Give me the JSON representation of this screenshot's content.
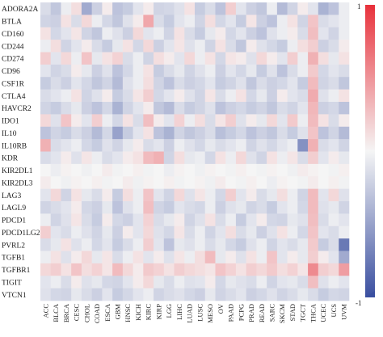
{
  "chart_data": {
    "type": "heatmap",
    "title": "",
    "xlabel": "",
    "ylabel": "",
    "x_categories": [
      "ACC",
      "BLCA",
      "BRCA",
      "CESC",
      "CHOL",
      "COAD",
      "ESCA",
      "GBM",
      "HNSC",
      "KICH",
      "KIRC",
      "KIRP",
      "LGG",
      "LIHC",
      "LUAD",
      "LUSC",
      "MESO",
      "OV",
      "PAAD",
      "PCPG",
      "PRAD",
      "READ",
      "SARC",
      "SKCM",
      "STAD",
      "TGCT",
      "THCA",
      "UCEC",
      "UCS",
      "UVM"
    ],
    "y_categories": [
      "ADORA2A",
      "BTLA",
      "CD160",
      "CD244",
      "CD274",
      "CD96",
      "CSF1R",
      "CTLA4",
      "HAVCR2",
      "IDO1",
      "IL10",
      "IL10RB",
      "KDR",
      "KIR2DL1",
      "KIR2DL3",
      "LAG3",
      "LAGL9",
      "PDCD1",
      "PDCD1LG2",
      "PVRL2",
      "TGFB1",
      "TGFBR1",
      "TIGIT",
      "VTCN1"
    ],
    "color_scale": {
      "min": -1,
      "max": 1,
      "low_color": "#3a4fa0",
      "mid_color": "#f5f5f5",
      "high_color": "#e8323c",
      "ticks": [
        "1",
        "-1"
      ]
    },
    "grid": false,
    "values": [
      [
        -0.15,
        -0.28,
        -0.05,
        0.12,
        -0.45,
        -0.22,
        0.05,
        -0.3,
        -0.25,
        -0.1,
        0.05,
        -0.2,
        -0.18,
        -0.12,
        0.1,
        -0.25,
        -0.15,
        -0.3,
        0.2,
        -0.1,
        -0.22,
        -0.28,
        -0.05,
        -0.35,
        -0.2,
        0.05,
        -0.1,
        -0.4,
        -0.3,
        -0.05
      ],
      [
        -0.2,
        -0.22,
        0.1,
        -0.15,
        0.15,
        -0.05,
        -0.18,
        -0.28,
        -0.12,
        0.05,
        0.4,
        -0.15,
        -0.25,
        -0.1,
        -0.05,
        -0.2,
        0.12,
        -0.18,
        -0.1,
        -0.25,
        0.08,
        -0.22,
        -0.3,
        -0.05,
        0.1,
        -0.2,
        0.25,
        -0.15,
        -0.1,
        -0.05
      ],
      [
        0.1,
        -0.18,
        -0.1,
        0.08,
        -0.2,
        -0.28,
        -0.05,
        -0.12,
        -0.22,
        0.15,
        -0.1,
        -0.05,
        -0.2,
        0.1,
        -0.15,
        -0.25,
        -0.08,
        0.05,
        -0.18,
        -0.1,
        -0.22,
        -0.3,
        -0.12,
        -0.05,
        0.05,
        -0.15,
        0.28,
        -0.1,
        -0.2,
        -0.05
      ],
      [
        -0.05,
        0.12,
        -0.2,
        -0.1,
        0.05,
        -0.15,
        -0.25,
        -0.08,
        0.1,
        -0.18,
        0.15,
        -0.22,
        -0.1,
        0.08,
        -0.12,
        -0.05,
        -0.2,
        0.1,
        -0.15,
        -0.28,
        0.05,
        -0.12,
        -0.18,
        -0.25,
        -0.05,
        0.12,
        0.2,
        -0.22,
        -0.15,
        0.05
      ],
      [
        0.2,
        -0.1,
        0.15,
        -0.05,
        0.25,
        -0.08,
        0.1,
        0.18,
        -0.15,
        -0.05,
        -0.2,
        0.12,
        0.05,
        -0.1,
        0.15,
        -0.05,
        0.1,
        -0.18,
        0.08,
        0.05,
        -0.12,
        0.15,
        0.05,
        -0.1,
        0.2,
        -0.05,
        0.35,
        0.12,
        -0.08,
        0.1
      ],
      [
        -0.1,
        -0.2,
        -0.15,
        0.05,
        -0.08,
        -0.22,
        -0.12,
        -0.3,
        -0.18,
        -0.05,
        0.1,
        -0.25,
        -0.15,
        -0.08,
        -0.2,
        -0.12,
        -0.05,
        -0.22,
        -0.1,
        -0.18,
        -0.08,
        -0.25,
        -0.12,
        -0.3,
        -0.15,
        -0.05,
        0.22,
        -0.18,
        -0.1,
        -0.15
      ],
      [
        -0.25,
        -0.15,
        -0.22,
        -0.1,
        -0.18,
        -0.28,
        -0.2,
        -0.35,
        -0.12,
        -0.05,
        0.12,
        -0.2,
        -0.3,
        -0.15,
        -0.22,
        -0.18,
        -0.1,
        -0.25,
        -0.2,
        -0.12,
        -0.28,
        -0.15,
        -0.22,
        -0.18,
        -0.1,
        -0.25,
        0.3,
        -0.2,
        -0.15,
        -0.28
      ],
      [
        -0.15,
        -0.1,
        -0.05,
        0.1,
        -0.2,
        -0.12,
        0.05,
        -0.25,
        -0.15,
        0.08,
        0.2,
        -0.18,
        -0.1,
        0.05,
        -0.12,
        -0.2,
        0.08,
        -0.15,
        -0.05,
        0.1,
        -0.18,
        -0.08,
        -0.22,
        0.05,
        -0.1,
        -0.15,
        0.38,
        -0.12,
        -0.05,
        0.1
      ],
      [
        -0.2,
        -0.25,
        -0.15,
        -0.08,
        -0.22,
        -0.3,
        -0.18,
        -0.4,
        -0.2,
        -0.1,
        0.05,
        -0.28,
        -0.35,
        -0.15,
        -0.25,
        -0.2,
        -0.12,
        -0.3,
        -0.22,
        -0.18,
        -0.25,
        -0.2,
        -0.28,
        -0.15,
        -0.2,
        -0.1,
        0.32,
        -0.22,
        -0.18,
        -0.3
      ],
      [
        0.15,
        -0.12,
        0.25,
        0.05,
        -0.1,
        0.2,
        -0.05,
        -0.18,
        0.1,
        -0.15,
        0.28,
        0.05,
        -0.1,
        0.18,
        -0.05,
        0.12,
        -0.15,
        0.08,
        0.2,
        -0.12,
        0.05,
        -0.08,
        0.15,
        -0.1,
        0.22,
        -0.05,
        0.3,
        0.1,
        -0.15,
        0.05
      ],
      [
        -0.3,
        -0.2,
        -0.25,
        -0.15,
        -0.22,
        -0.35,
        -0.18,
        -0.5,
        -0.25,
        -0.1,
        0.1,
        -0.3,
        -0.4,
        -0.2,
        -0.28,
        -0.22,
        -0.15,
        -0.32,
        -0.25,
        -0.18,
        -0.3,
        -0.22,
        -0.28,
        -0.15,
        -0.25,
        -0.12,
        0.25,
        -0.3,
        -0.2,
        -0.35
      ],
      [
        0.35,
        -0.15,
        -0.1,
        -0.05,
        -0.18,
        -0.25,
        -0.12,
        -0.2,
        -0.08,
        0.05,
        -0.15,
        -0.1,
        -0.22,
        -0.05,
        -0.12,
        -0.18,
        -0.08,
        -0.15,
        -0.1,
        -0.05,
        -0.2,
        -0.12,
        -0.18,
        -0.1,
        -0.05,
        -0.6,
        0.35,
        -0.15,
        -0.1,
        -0.2
      ],
      [
        -0.15,
        -0.1,
        0.05,
        -0.12,
        0.08,
        -0.05,
        -0.15,
        -0.1,
        0.05,
        0.1,
        0.3,
        0.35,
        -0.2,
        0.12,
        -0.08,
        -0.05,
        -0.18,
        0.1,
        -0.05,
        0.15,
        -0.12,
        -0.2,
        0.1,
        -0.05,
        0.08,
        -0.15,
        0.2,
        -0.1,
        0.05,
        -0.08
      ],
      [
        0.0,
        -0.05,
        0.02,
        0.0,
        -0.03,
        0.0,
        0.05,
        -0.02,
        0.0,
        0.03,
        -0.02,
        0.0,
        -0.05,
        0.02,
        0.0,
        -0.03,
        0.02,
        0.0,
        -0.02,
        0.03,
        0.0,
        -0.02,
        0.02,
        0.0,
        -0.03,
        0.05,
        0.02,
        0.0,
        -0.02,
        0.03
      ],
      [
        0.05,
        0.0,
        -0.03,
        0.02,
        0.0,
        0.03,
        -0.02,
        0.0,
        0.05,
        -0.03,
        0.02,
        0.0,
        0.03,
        -0.02,
        0.0,
        0.02,
        -0.03,
        0.05,
        0.0,
        -0.02,
        0.03,
        0.0,
        -0.05,
        0.02,
        0.0,
        -0.02,
        0.05,
        0.0,
        0.03,
        -0.02
      ],
      [
        -0.1,
        0.15,
        -0.2,
        0.1,
        -0.08,
        -0.15,
        0.05,
        -0.25,
        0.12,
        -0.05,
        0.25,
        -0.1,
        -0.2,
        0.15,
        -0.12,
        0.08,
        -0.05,
        -0.18,
        0.2,
        -0.1,
        0.05,
        -0.15,
        -0.08,
        0.12,
        -0.05,
        -0.2,
        0.3,
        -0.1,
        0.15,
        -0.12
      ],
      [
        -0.2,
        -0.15,
        -0.1,
        0.05,
        -0.18,
        -0.22,
        -0.08,
        -0.3,
        -0.12,
        -0.05,
        0.28,
        -0.2,
        -0.25,
        -0.1,
        -0.15,
        -0.18,
        -0.05,
        -0.22,
        -0.12,
        -0.08,
        -0.2,
        -0.15,
        -0.25,
        -0.1,
        -0.05,
        -0.18,
        0.3,
        -0.12,
        -0.08,
        -0.2
      ],
      [
        -0.05,
        -0.2,
        -0.12,
        0.08,
        -0.15,
        -0.25,
        0.05,
        -0.18,
        -0.22,
        -0.1,
        0.18,
        -0.15,
        -0.08,
        0.05,
        -0.2,
        -0.12,
        0.1,
        -0.15,
        -0.05,
        -0.25,
        -0.1,
        0.05,
        -0.18,
        -0.2,
        -0.08,
        -0.12,
        0.28,
        -0.15,
        -0.05,
        -0.1
      ],
      [
        0.2,
        -0.1,
        -0.15,
        -0.05,
        -0.12,
        -0.2,
        -0.08,
        -0.22,
        0.05,
        -0.1,
        0.15,
        -0.12,
        -0.18,
        0.08,
        -0.15,
        -0.05,
        -0.2,
        -0.1,
        0.12,
        -0.15,
        -0.08,
        -0.22,
        -0.12,
        0.1,
        -0.05,
        -0.18,
        0.25,
        -0.1,
        -0.15,
        -0.05
      ],
      [
        -0.15,
        -0.08,
        0.1,
        -0.12,
        -0.05,
        -0.18,
        -0.1,
        -0.25,
        -0.15,
        -0.05,
        0.2,
        -0.1,
        -0.3,
        -0.08,
        -0.12,
        -0.05,
        -0.15,
        -0.08,
        -0.18,
        -0.25,
        -0.12,
        -0.05,
        -0.2,
        -0.1,
        -0.15,
        -0.08,
        0.22,
        -0.25,
        -0.15,
        -0.75
      ],
      [
        -0.05,
        0.1,
        -0.12,
        0.05,
        0.15,
        -0.08,
        0.08,
        -0.15,
        -0.05,
        0.1,
        -0.1,
        0.05,
        -0.12,
        0.08,
        -0.05,
        0.12,
        0.3,
        -0.08,
        0.05,
        -0.12,
        0.1,
        -0.05,
        0.25,
        -0.1,
        0.05,
        -0.08,
        0.2,
        0.05,
        -0.1,
        -0.45
      ],
      [
        0.15,
        0.2,
        0.1,
        0.25,
        0.12,
        0.18,
        0.08,
        0.3,
        0.15,
        0.05,
        0.22,
        0.18,
        0.1,
        0.2,
        0.15,
        0.12,
        0.08,
        0.25,
        0.18,
        0.1,
        0.2,
        0.15,
        0.22,
        0.12,
        0.18,
        0.08,
        0.55,
        0.2,
        0.15,
        0.45
      ],
      [
        -0.1,
        -0.05,
        -0.15,
        0.05,
        -0.12,
        -0.08,
        -0.18,
        -0.2,
        -0.1,
        0.05,
        0.15,
        -0.08,
        -0.15,
        -0.05,
        -0.12,
        -0.1,
        0.05,
        -0.18,
        -0.08,
        -0.12,
        -0.15,
        -0.05,
        -0.2,
        -0.1,
        -0.08,
        -0.15,
        0.28,
        -0.12,
        -0.05,
        -0.1
      ],
      [
        -0.12,
        -0.18,
        -0.2,
        -0.08,
        -0.15,
        -0.22,
        -0.1,
        -0.25,
        -0.18,
        -0.1,
        -0.05,
        -0.2,
        -0.15,
        -0.12,
        -0.18,
        -0.22,
        -0.08,
        -0.2,
        -0.15,
        -0.1,
        -0.22,
        -0.18,
        -0.12,
        -0.2,
        -0.15,
        -0.08,
        -0.15,
        -0.25,
        -0.18,
        -0.2
      ]
    ]
  }
}
